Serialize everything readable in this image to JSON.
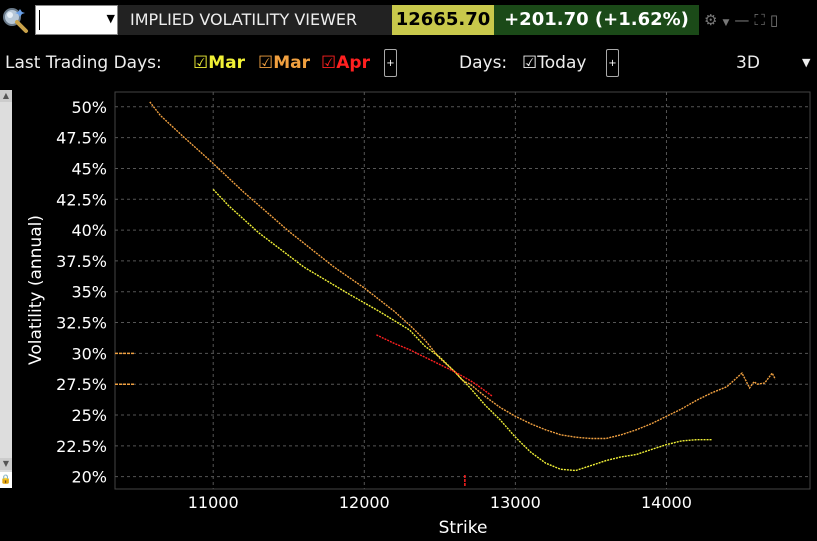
{
  "header": {
    "title": "IMPLIED VOLATILITY VIEWER",
    "price": "12665.70",
    "change": "+201.70 (+1.62%)",
    "price_bg": "#c8c84b",
    "change_bg": "#1b4a18",
    "icons": [
      "gear-icon",
      "chevron-down-icon",
      "minimize-icon",
      "maximize-icon",
      "close-icon"
    ]
  },
  "toolbar": {
    "last_trading_days_label": "Last Trading Days:",
    "series_toggles": [
      {
        "label": "Mar",
        "color": "#f0f036",
        "checked": true
      },
      {
        "label": "Mar",
        "color": "#f0a040",
        "checked": true
      },
      {
        "label": "Apr",
        "color": "#ff2020",
        "checked": true
      }
    ],
    "add_button": "+",
    "days_label": "Days:",
    "today_label": "Today",
    "today_checked": true,
    "view_mode": "3D"
  },
  "chart_data": {
    "type": "line",
    "xlabel": "Strike",
    "ylabel": "Volatility (annual)",
    "xlim": [
      10350,
      14950
    ],
    "ylim": [
      19.0,
      51.2
    ],
    "xticks": [
      11000,
      12000,
      13000,
      14000
    ],
    "xtick_labels": [
      "11000",
      "12000",
      "13000",
      "14000"
    ],
    "yticks": [
      20,
      22.5,
      25,
      27.5,
      30,
      32.5,
      35,
      37.5,
      40,
      42.5,
      45,
      47.5,
      50
    ],
    "ytick_labels": [
      "20%",
      "22.5%",
      "25%",
      "27.5%",
      "30%",
      "32.5%",
      "35%",
      "37.5%",
      "40%",
      "42.5%",
      "45%",
      "47.5%",
      "50%"
    ],
    "grid": true,
    "series": [
      {
        "color": "#f0a040",
        "x": [
          10580,
          10650,
          10800,
          11000,
          11200,
          11500,
          11800,
          12000,
          12200,
          12300,
          12400,
          12500,
          12600,
          12650,
          12700,
          12800,
          12900,
          13000,
          13100,
          13200,
          13300,
          13400,
          13500,
          13600,
          13700,
          13800,
          13900,
          14000,
          14100,
          14200,
          14300,
          14400,
          14500,
          14550,
          14580,
          14600,
          14650,
          14700,
          14720
        ],
        "y": [
          50.4,
          49.3,
          47.6,
          45.4,
          43.1,
          39.9,
          37.0,
          35.3,
          33.4,
          32.3,
          31.1,
          29.6,
          28.5,
          27.8,
          27.5,
          26.5,
          25.6,
          24.9,
          24.3,
          23.8,
          23.4,
          23.2,
          23.1,
          23.1,
          23.4,
          23.8,
          24.3,
          24.9,
          25.5,
          26.2,
          26.8,
          27.3,
          28.4,
          27.2,
          27.7,
          27.5,
          27.6,
          28.4,
          27.9
        ]
      },
      {
        "color": "#f0f036",
        "x": [
          11000,
          11100,
          11300,
          11600,
          11900,
          12100,
          12300,
          12400,
          12500,
          12600,
          12700,
          12800,
          12900,
          13000,
          13100,
          13200,
          13300,
          13400,
          13500,
          13600,
          13700,
          13800,
          13900,
          14000,
          14100,
          14200,
          14300
        ],
        "y": [
          43.3,
          42.0,
          39.8,
          37.0,
          34.8,
          33.4,
          31.9,
          30.6,
          29.7,
          28.5,
          27.2,
          25.8,
          24.6,
          23.2,
          22.0,
          21.1,
          20.6,
          20.5,
          20.9,
          21.3,
          21.6,
          21.8,
          22.2,
          22.6,
          22.9,
          23.0,
          23.0
        ]
      },
      {
        "color": "#ff2020",
        "x": [
          12080,
          12200,
          12300,
          12400,
          12500,
          12600,
          12700,
          12750,
          12850
        ],
        "y": [
          31.5,
          30.8,
          30.3,
          29.7,
          29.1,
          28.5,
          27.8,
          27.4,
          26.5
        ]
      }
    ],
    "edge_markers": [
      {
        "y": 30.0,
        "color": "#f0a040"
      },
      {
        "y": 27.5,
        "color": "#f0a040"
      }
    ],
    "spot_marker": {
      "x": 12665.7,
      "color": "#ff2020"
    }
  }
}
